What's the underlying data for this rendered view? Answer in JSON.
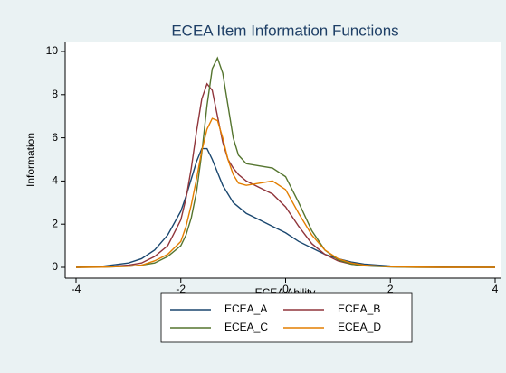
{
  "chart_data": {
    "type": "line",
    "title": "ECEA Item Information Functions",
    "x_label": "ECEA Ability",
    "y_label": "Information",
    "x": [
      -4,
      -3.5,
      -3,
      -2.75,
      -2.5,
      -2.25,
      -2,
      -1.9,
      -1.8,
      -1.7,
      -1.6,
      -1.5,
      -1.4,
      -1.3,
      -1.2,
      -1.1,
      -1,
      -0.9,
      -0.75,
      -0.5,
      -0.25,
      0,
      0.25,
      0.5,
      0.75,
      1,
      1.25,
      1.5,
      2,
      2.5,
      3,
      4
    ],
    "series": [
      {
        "name": "ECEA_A",
        "color": "#1a476f",
        "values": [
          0,
          0.05,
          0.2,
          0.4,
          0.8,
          1.5,
          2.6,
          3.3,
          4.1,
          4.9,
          5.5,
          5.5,
          5.0,
          4.4,
          3.8,
          3.4,
          3.0,
          2.8,
          2.5,
          2.2,
          1.9,
          1.6,
          1.2,
          0.9,
          0.6,
          0.4,
          0.25,
          0.15,
          0.06,
          0.02,
          0.01,
          0
        ]
      },
      {
        "name": "ECEA_B",
        "color": "#90353b",
        "values": [
          0,
          0.02,
          0.1,
          0.2,
          0.5,
          1.0,
          2.2,
          3.2,
          4.6,
          6.3,
          7.8,
          8.5,
          8.2,
          7.0,
          5.8,
          5.0,
          4.6,
          4.3,
          4.0,
          3.7,
          3.4,
          2.8,
          1.9,
          1.1,
          0.6,
          0.3,
          0.15,
          0.08,
          0.03,
          0.01,
          0,
          0
        ]
      },
      {
        "name": "ECEA_C",
        "color": "#55752f",
        "values": [
          0,
          0.01,
          0.05,
          0.1,
          0.2,
          0.5,
          1.0,
          1.5,
          2.3,
          3.5,
          5.3,
          7.5,
          9.2,
          9.7,
          9.0,
          7.5,
          6.0,
          5.2,
          4.8,
          4.7,
          4.6,
          4.2,
          3.0,
          1.7,
          0.8,
          0.35,
          0.15,
          0.07,
          0.02,
          0,
          0,
          0
        ]
      },
      {
        "name": "ECEA_D",
        "color": "#e37e00",
        "values": [
          0,
          0.01,
          0.05,
          0.1,
          0.3,
          0.6,
          1.2,
          1.9,
          2.9,
          4.1,
          5.4,
          6.4,
          6.9,
          6.8,
          6.0,
          5.0,
          4.3,
          3.9,
          3.8,
          3.9,
          4.0,
          3.6,
          2.5,
          1.5,
          0.8,
          0.4,
          0.2,
          0.1,
          0.03,
          0.01,
          0,
          0
        ]
      }
    ],
    "xlim": [
      -4,
      4
    ],
    "xticks": [
      -4,
      -2,
      0,
      2,
      4
    ],
    "ylim": [
      0,
      10
    ],
    "yticks": [
      0,
      2,
      4,
      6,
      8,
      10
    ],
    "grid": false,
    "legend": "bottom"
  }
}
